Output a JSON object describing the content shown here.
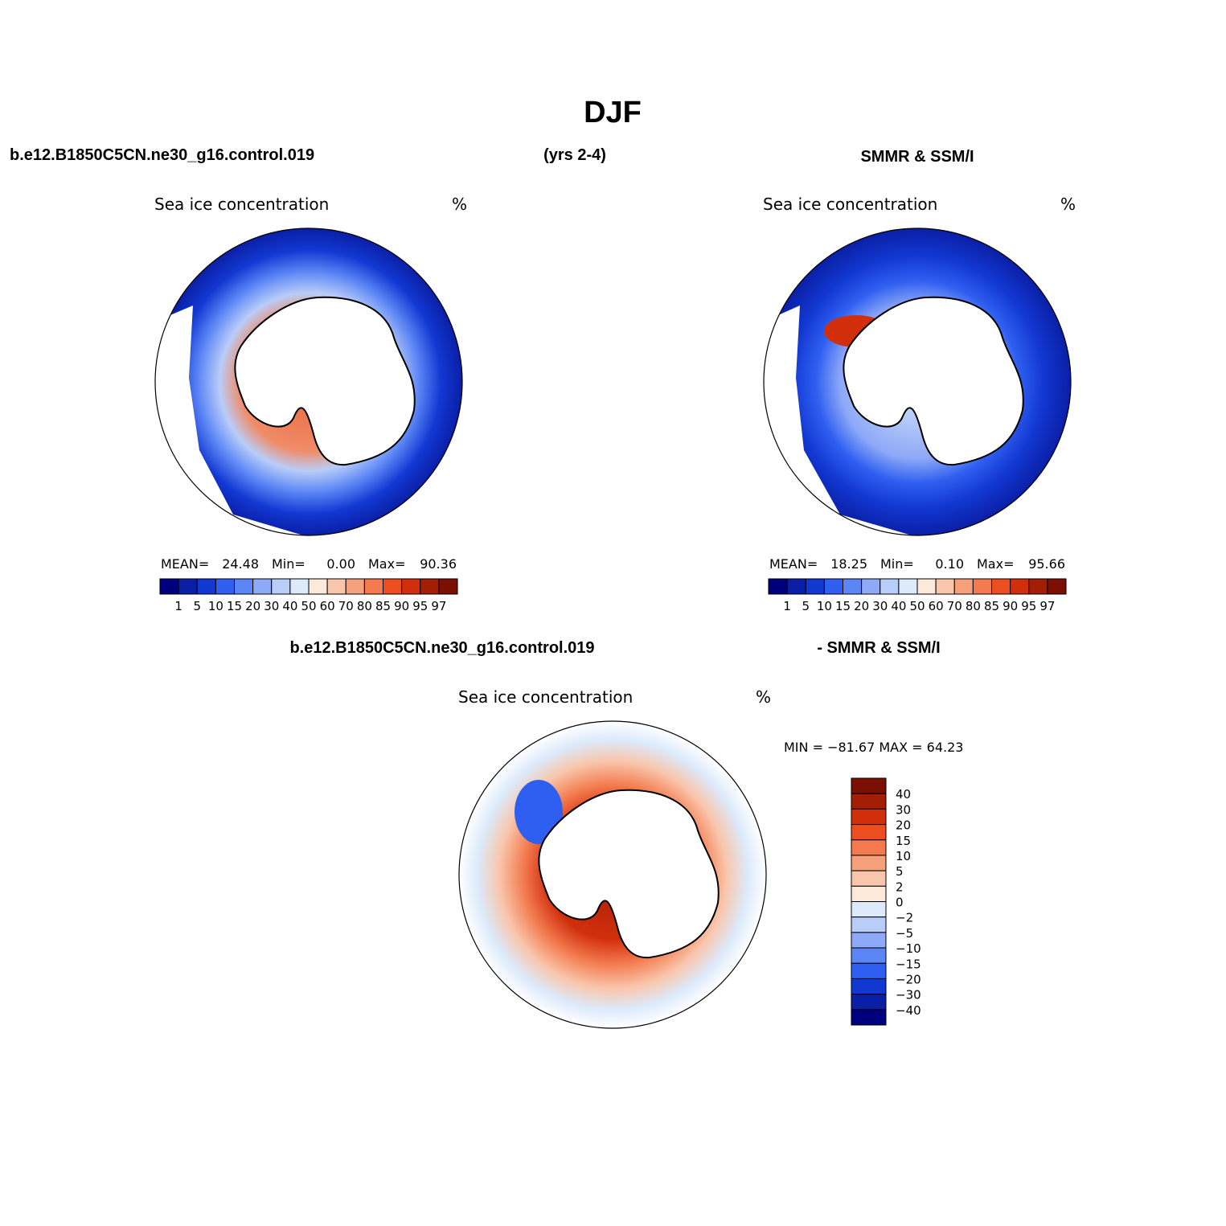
{
  "figure_title": "DJF",
  "header_left": "b.e12.B1850C5CN.ne30_g16.control.019",
  "header_center": "(yrs 2-4)",
  "header_right": "SMMR & SSM/I",
  "diff_header_left": "b.e12.B1850C5CN.ne30_g16.control.019",
  "diff_header_right": "- SMMR & SSM/I",
  "panels": [
    {
      "title": "Sea ice concentration",
      "units": "%",
      "stats": {
        "mean_label": "MEAN=",
        "mean": "24.48",
        "min_label": "Min=",
        "min": "0.00",
        "max_label": "Max=",
        "max": "90.36"
      }
    },
    {
      "title": "Sea ice concentration",
      "units": "%",
      "stats": {
        "mean_label": "MEAN=",
        "mean": "18.25",
        "min_label": "Min=",
        "min": "0.10",
        "max_label": "Max=",
        "max": "95.66"
      }
    },
    {
      "title": "Sea ice concentration",
      "units": "%",
      "stats": {
        "text": "MIN = −81.67 MAX =   64.23"
      }
    }
  ],
  "colorbars": {
    "concentration": {
      "labels": [
        "1",
        "5",
        "10",
        "15",
        "20",
        "30",
        "40",
        "50",
        "60",
        "70",
        "80",
        "85",
        "90",
        "95",
        "97"
      ],
      "colors": [
        "#00007f",
        "#0a1fa6",
        "#1238d2",
        "#2f5ff0",
        "#5c86f5",
        "#8ea9f7",
        "#b9cdf9",
        "#dceafb",
        "#fde9d9",
        "#f9c6ab",
        "#f6a07c",
        "#f37a4e",
        "#ec4e1f",
        "#d12f0c",
        "#a41d05",
        "#7a0f02"
      ]
    },
    "difference": {
      "labels": [
        "40",
        "30",
        "20",
        "15",
        "10",
        "5",
        "2",
        "0",
        "−2",
        "−5",
        "−10",
        "−15",
        "−20",
        "−30",
        "−40"
      ],
      "colors": [
        "#7a0f02",
        "#a41d05",
        "#d12f0c",
        "#ec4e1f",
        "#f37a4e",
        "#f6a07c",
        "#f9c6ab",
        "#fde9d9",
        "#dceafb",
        "#b9cdf9",
        "#8ea9f7",
        "#5c86f5",
        "#2f5ff0",
        "#1238d2",
        "#0a1fa6",
        "#00007f"
      ]
    }
  }
}
